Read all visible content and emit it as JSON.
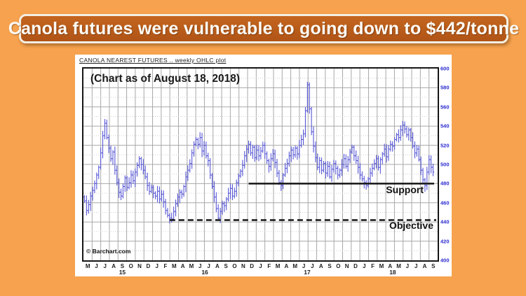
{
  "banner": {
    "title": "Canola futures were vulnerable to going down to $442/tonne",
    "bg_color": "#b75a1b",
    "border_color": "#f3efe4"
  },
  "page": {
    "background_color": "#f6a24e"
  },
  "chart": {
    "header": "CANOLA NEAREST FUTURES .. weekly OHLC plot",
    "annotation": "(Chart as of August 18, 2018)",
    "copyright": "© Barchart.com",
    "support_label": "Support",
    "objective_label": "Objective"
  },
  "chart_data": {
    "type": "line",
    "subtype": "weekly-ohlc-bars",
    "title": "CANOLA NEAREST FUTURES .. weekly OHLC plot",
    "ylabel": "",
    "xlabel": "",
    "ylim": [
      400,
      600
    ],
    "y_tick_step": 20,
    "y_ticks": [
      400,
      420,
      440,
      460,
      480,
      500,
      520,
      540,
      560,
      580,
      600
    ],
    "grid": "major solid every 20, minor dotted every 10, vertical monthly",
    "x_months": [
      "M",
      "J",
      "J",
      "A",
      "S",
      "O",
      "N",
      "D",
      "J",
      "F",
      "M",
      "A",
      "M",
      "J",
      "J",
      "A",
      "S",
      "O",
      "N",
      "D",
      "J",
      "F",
      "M",
      "A",
      "M",
      "J",
      "J",
      "A",
      "S",
      "O",
      "N",
      "D",
      "J",
      "F",
      "M",
      "A",
      "M",
      "J",
      "J",
      "A",
      "S"
    ],
    "years": [
      {
        "label": "15",
        "pos": 4.5
      },
      {
        "label": "16",
        "pos": 14.05
      },
      {
        "label": "17",
        "pos": 25.9
      },
      {
        "label": "18",
        "pos": 35.8
      }
    ],
    "weekly_close": [
      462,
      452,
      458,
      467,
      473,
      480,
      489,
      497,
      512,
      530,
      543,
      528,
      517,
      506,
      513,
      494,
      481,
      471,
      467,
      477,
      486,
      476,
      481,
      489,
      483,
      492,
      499,
      506,
      500,
      494,
      487,
      478,
      472,
      476,
      470,
      467,
      472,
      464,
      469,
      461,
      452,
      447,
      444,
      443,
      451,
      459,
      466,
      471,
      469,
      477,
      487,
      494,
      501,
      512,
      521,
      526,
      521,
      528,
      514,
      520,
      509,
      504,
      489,
      477,
      466,
      454,
      444,
      451,
      459,
      457,
      464,
      470,
      475,
      467,
      472,
      481,
      488,
      493,
      499,
      509,
      516,
      521,
      512,
      518,
      507,
      515,
      509,
      514,
      520,
      511,
      504,
      498,
      506,
      511,
      502,
      491,
      481,
      478,
      489,
      496,
      501,
      509,
      515,
      510,
      517,
      511,
      520,
      526,
      532,
      556,
      583,
      558,
      534,
      519,
      507,
      497,
      504,
      494,
      501,
      491,
      498,
      487,
      495,
      501,
      496,
      489,
      494,
      500,
      506,
      498,
      505,
      513,
      518,
      509,
      504,
      497,
      489,
      485,
      481,
      478,
      485,
      491,
      496,
      501,
      506,
      497,
      505,
      511,
      516,
      508,
      516,
      521,
      519,
      526,
      531,
      528,
      536,
      541,
      537,
      531,
      536,
      528,
      519,
      512,
      516,
      505,
      494,
      484,
      478,
      492,
      505,
      497,
      492
    ],
    "support": {
      "value": 480,
      "label": "Support",
      "start_week": 81,
      "style": "solid"
    },
    "objective": {
      "value": 442,
      "label": "Objective",
      "start_week": 42,
      "style": "dashed"
    },
    "bar_color": "#5858d8",
    "axis_label_color": "#2b2bd0",
    "grid_major_color": "#a8a8a8",
    "grid_minor_color": "#cfcfcf"
  }
}
